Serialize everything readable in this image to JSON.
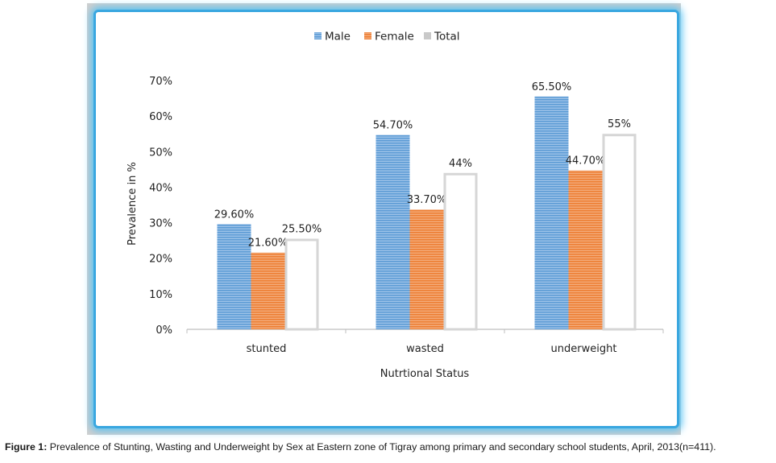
{
  "caption": {
    "label": "Figure 1:",
    "text": " Prevalence of Stunting, Wasting and Underweight by Sex at Eastern zone of Tigray among primary and secondary school students, April, 2013(n=411)."
  },
  "chart_data": {
    "type": "bar",
    "title": "",
    "xlabel": "Nutrtional Status",
    "ylabel": "Prevalence in %",
    "ylim": [
      0,
      70
    ],
    "yticks": [
      "0%",
      "10%",
      "20%",
      "30%",
      "40%",
      "50%",
      "60%",
      "70%"
    ],
    "legend_position": "top",
    "grid": false,
    "categories": [
      "stunted",
      "wasted",
      "underweight"
    ],
    "series": [
      {
        "name": "Male",
        "color": "#5b9bd5",
        "values": [
          29.6,
          54.7,
          65.5
        ],
        "labels": [
          "29.60%",
          "54.70%",
          "65.50%"
        ]
      },
      {
        "name": "Female",
        "color": "#ed7d31",
        "values": [
          21.6,
          33.7,
          44.7
        ],
        "labels": [
          "21.60%",
          "33.70%",
          "44.70%"
        ]
      },
      {
        "name": "Total",
        "color": "#a5a5a5",
        "values": [
          25.5,
          44,
          55
        ],
        "labels": [
          "25.50%",
          "44%",
          "55%"
        ]
      }
    ]
  }
}
